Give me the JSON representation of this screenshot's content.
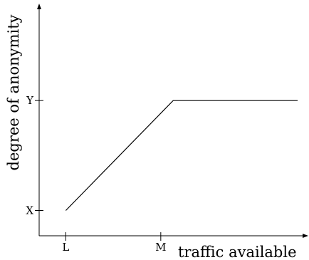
{
  "chart_data": {
    "type": "line",
    "title": "",
    "xlabel": "traffic available",
    "ylabel": "degree of anonymity",
    "x_ticks": [
      {
        "label": "L",
        "value": 1
      },
      {
        "label": "M",
        "value": 2
      }
    ],
    "y_ticks": [
      {
        "label": "X",
        "value": 1
      },
      {
        "label": "Y",
        "value": 2
      }
    ],
    "xlim": [
      0.72,
      3.44
    ],
    "ylim": [
      0.77,
      2.85
    ],
    "grid": false,
    "legend": "none",
    "series": [
      {
        "points": [
          {
            "x": 1,
            "y": 1
          },
          {
            "x": 2.13,
            "y": 2
          },
          {
            "x": 3.44,
            "y": 2
          }
        ]
      }
    ]
  }
}
